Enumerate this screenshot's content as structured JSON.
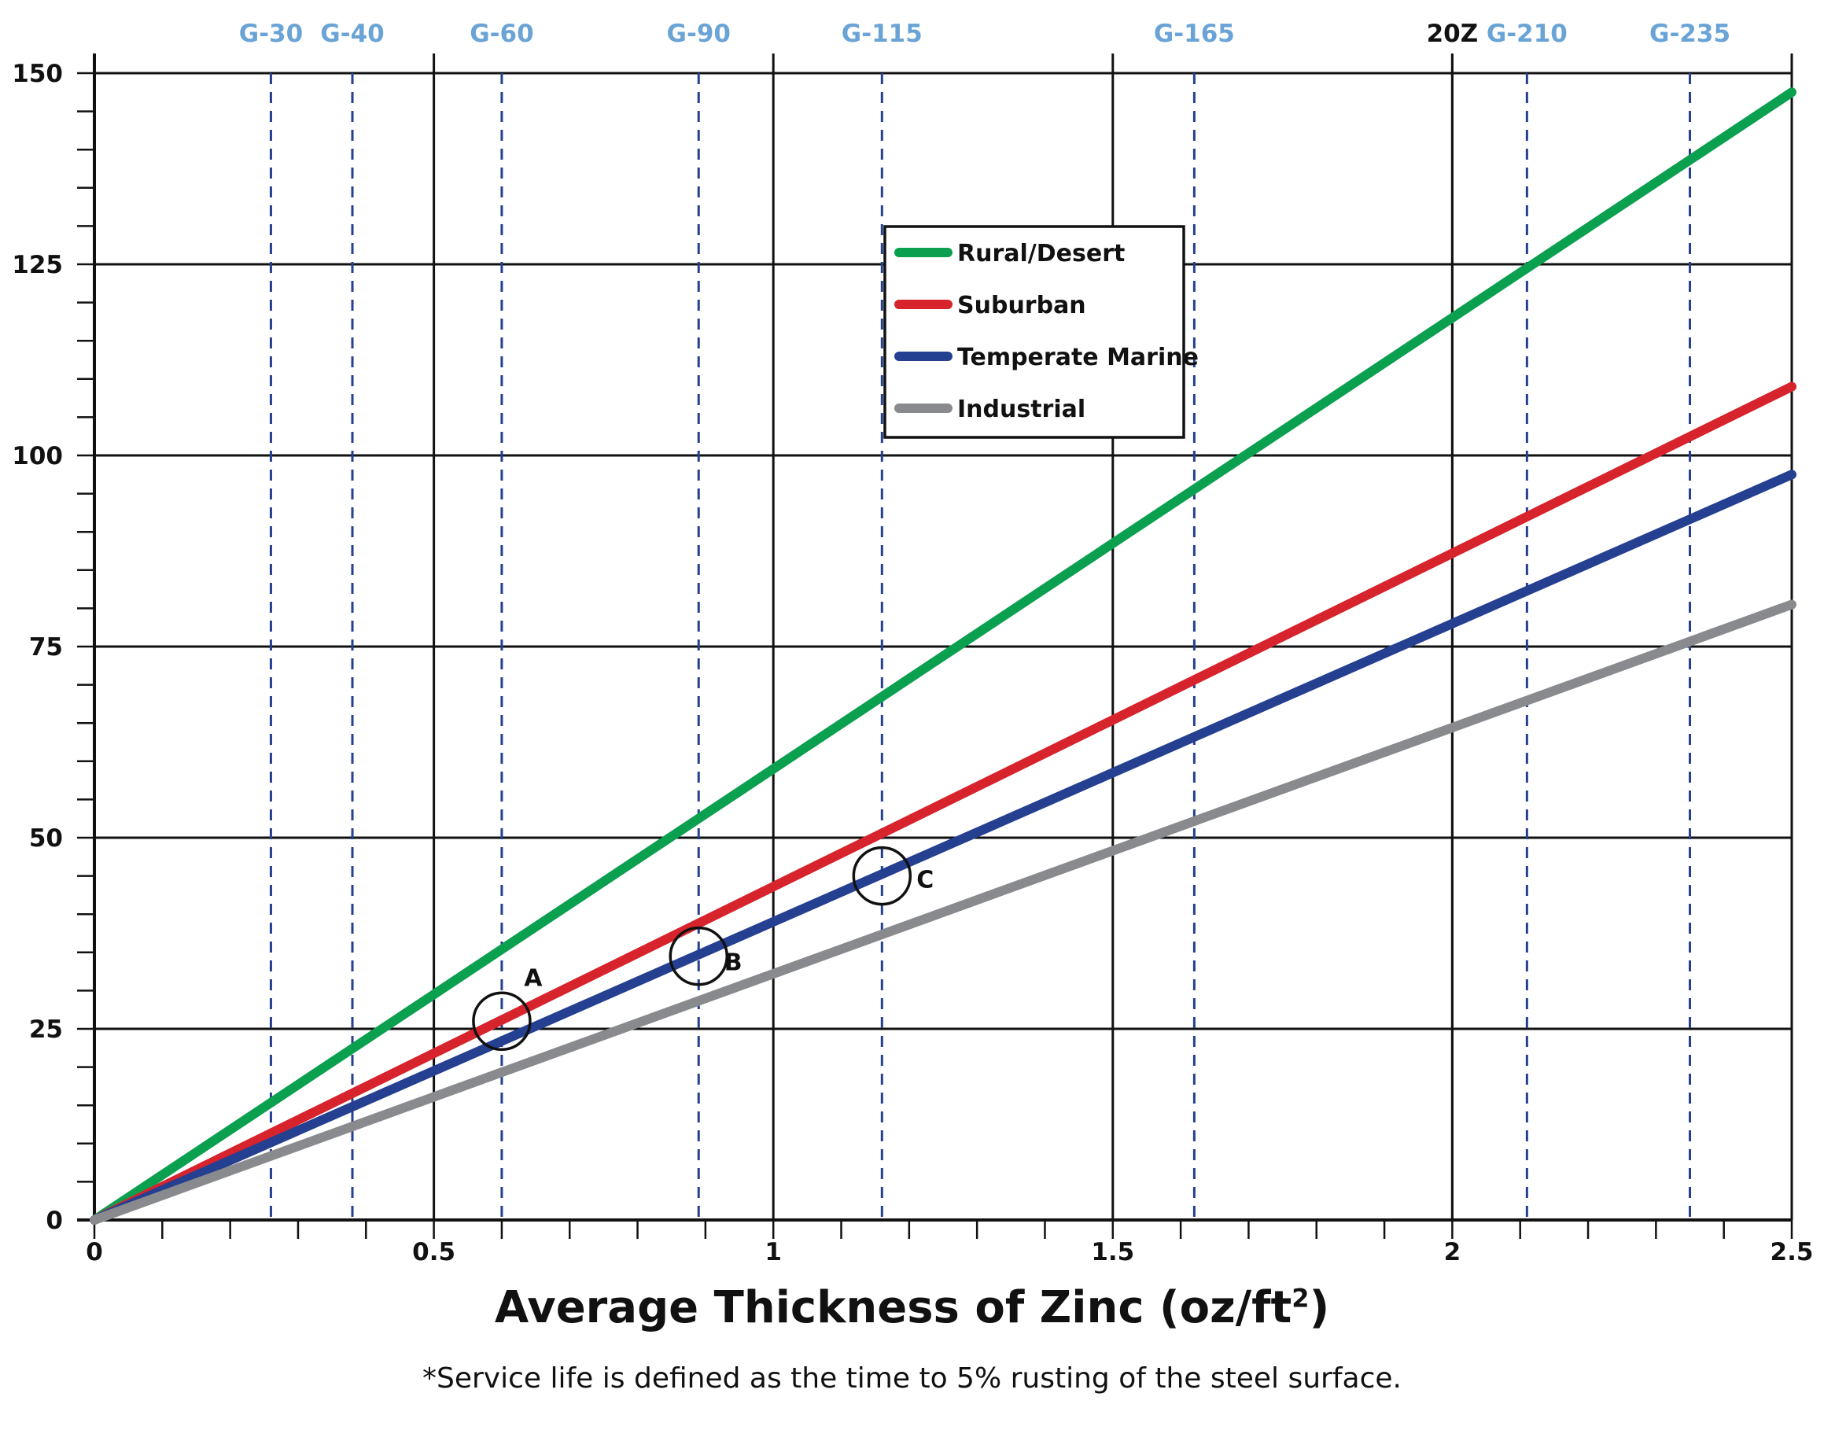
{
  "chart_data": {
    "type": "line",
    "title": "",
    "xlabel": "Average Thickness of Zinc (oz/ft",
    "xlabel_superscript": "2",
    "xlabel_suffix": ")",
    "ylabel": "",
    "footnote": "*Service life is defined as the time to 5% rusting of the steel surface.",
    "xlim": [
      0,
      2.5
    ],
    "ylim": [
      0,
      150
    ],
    "x_ticks": [
      {
        "value": 0,
        "label": "0"
      },
      {
        "value": 0.5,
        "label": "0.5"
      },
      {
        "value": 1,
        "label": "1"
      },
      {
        "value": 1.5,
        "label": "1.5"
      },
      {
        "value": 2,
        "label": "2"
      },
      {
        "value": 2.5,
        "label": "2.5"
      }
    ],
    "y_ticks": [
      {
        "value": 0,
        "label": "0"
      },
      {
        "value": 25,
        "label": "25"
      },
      {
        "value": 50,
        "label": "50"
      },
      {
        "value": 75,
        "label": "75"
      },
      {
        "value": 100,
        "label": "100"
      },
      {
        "value": 125,
        "label": "125"
      },
      {
        "value": 150,
        "label": "150"
      }
    ],
    "grid": true,
    "legend_position": "top-center",
    "series": [
      {
        "name": "Rural/Desert",
        "color": "#0aa04f",
        "x": [
          0,
          2.5
        ],
        "y": [
          0,
          147.5
        ]
      },
      {
        "name": "Suburban",
        "color": "#d7232c",
        "x": [
          0,
          2.5
        ],
        "y": [
          0,
          109
        ]
      },
      {
        "name": "Temperate Marine",
        "color": "#253f91",
        "x": [
          0,
          2.5
        ],
        "y": [
          0,
          97.5
        ]
      },
      {
        "name": "Industrial",
        "color": "#898a8d",
        "x": [
          0,
          2.5
        ],
        "y": [
          0,
          80.5
        ]
      }
    ],
    "grade_lines": [
      {
        "label": "G-30",
        "x": 0.26,
        "color": "#6aa3d5",
        "dashed": true
      },
      {
        "label": "G-40",
        "x": 0.38,
        "color": "#6aa3d5",
        "dashed": true
      },
      {
        "label": "G-60",
        "x": 0.6,
        "color": "#6aa3d5",
        "dashed": true
      },
      {
        "label": "G-90",
        "x": 0.89,
        "color": "#6aa3d5",
        "dashed": true
      },
      {
        "label": "G-115",
        "x": 1.16,
        "color": "#6aa3d5",
        "dashed": true
      },
      {
        "label": "G-165",
        "x": 1.62,
        "color": "#6aa3d5",
        "dashed": true
      },
      {
        "label": "20Z",
        "x": 2.0,
        "color": "#111111",
        "dashed": false
      },
      {
        "label": "G-210",
        "x": 2.11,
        "color": "#6aa3d5",
        "dashed": true
      },
      {
        "label": "G-235",
        "x": 2.35,
        "color": "#6aa3d5",
        "dashed": true
      }
    ],
    "annotations": [
      {
        "label": "A",
        "x": 0.6,
        "y": 26
      },
      {
        "label": "B",
        "x": 0.89,
        "y": 34.5
      },
      {
        "label": "C",
        "x": 1.16,
        "y": 45
      }
    ]
  }
}
